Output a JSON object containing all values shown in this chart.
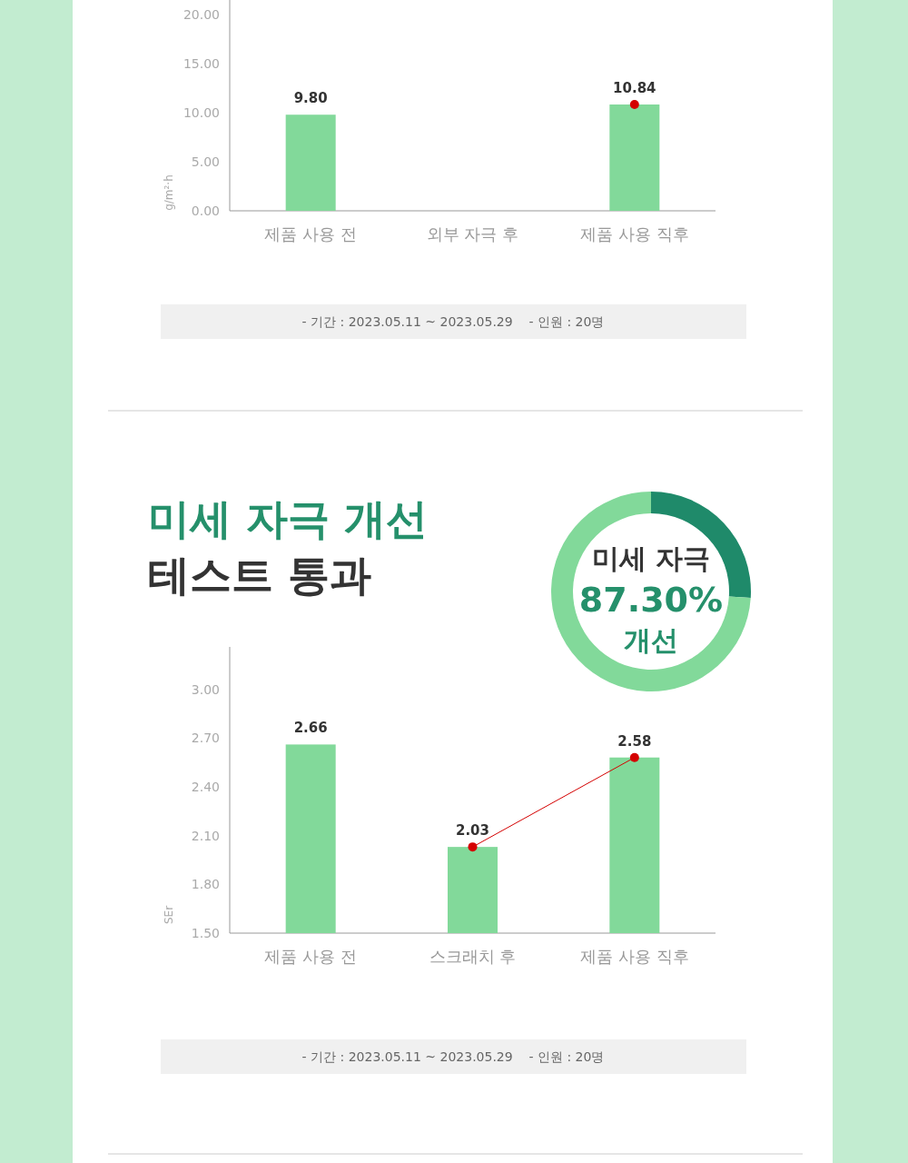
{
  "chart_data": [
    {
      "type": "bar",
      "ylabel": "g/m²·h",
      "categories": [
        "제품 사용 전",
        "외부 자극 후",
        "제품 사용 직후"
      ],
      "ylim": [
        0,
        21.5
      ],
      "yticks": [
        {
          "value": 0,
          "label": "0.00"
        },
        {
          "value": 5,
          "label": "5.00"
        },
        {
          "value": 10,
          "label": "10.00"
        },
        {
          "value": 15,
          "label": "15.00"
        },
        {
          "value": 20,
          "label": "20.00"
        }
      ],
      "marker": "circle",
      "series": [
        {
          "type": "bar",
          "color": "#82d99a",
          "values": [
            9.8,
            null,
            10.84
          ],
          "value_labels": [
            "9.80",
            null,
            "10.84"
          ]
        },
        {
          "type": "line",
          "color": "#d40000",
          "values": [
            null,
            null,
            10.84
          ]
        }
      ],
      "annotations": [
        "- 기간 : 2023.05.11 ~ 2023.05.29    - 인원 : 20명"
      ]
    },
    {
      "type": "bar",
      "title": "미세 자극 개선",
      "subtitle": "테스트 통과",
      "ylabel": "SEr",
      "categories": [
        "제품 사용 전",
        "스크래치 후",
        "제품 사용 직후"
      ],
      "ylim": [
        1.5,
        3.26
      ],
      "yticks": [
        {
          "value": 1.5,
          "label": "1.50"
        },
        {
          "value": 1.8,
          "label": "1.80"
        },
        {
          "value": 2.1,
          "label": "2.10"
        },
        {
          "value": 2.4,
          "label": "2.40"
        },
        {
          "value": 2.7,
          "label": "2.70"
        },
        {
          "value": 3.0,
          "label": "3.00"
        }
      ],
      "marker": "circle",
      "series": [
        {
          "type": "bar",
          "color": "#82d99a",
          "values": [
            2.66,
            2.03,
            2.58
          ],
          "value_labels": [
            "2.66",
            "2.03",
            "2.58"
          ]
        },
        {
          "type": "line",
          "color": "#d40000",
          "values": [
            null,
            2.03,
            2.58
          ]
        }
      ],
      "annotations": [
        "- 기간 : 2023.05.11 ~ 2023.05.29    - 인원 : 20명"
      ]
    },
    {
      "type": "donut",
      "categories": [
        null,
        null
      ],
      "values": [
        26,
        74
      ],
      "colors": [
        "#1f8a6a",
        "#82d99a"
      ],
      "annotations": [
        "미세 자극",
        "87.30%",
        "개선"
      ]
    }
  ]
}
